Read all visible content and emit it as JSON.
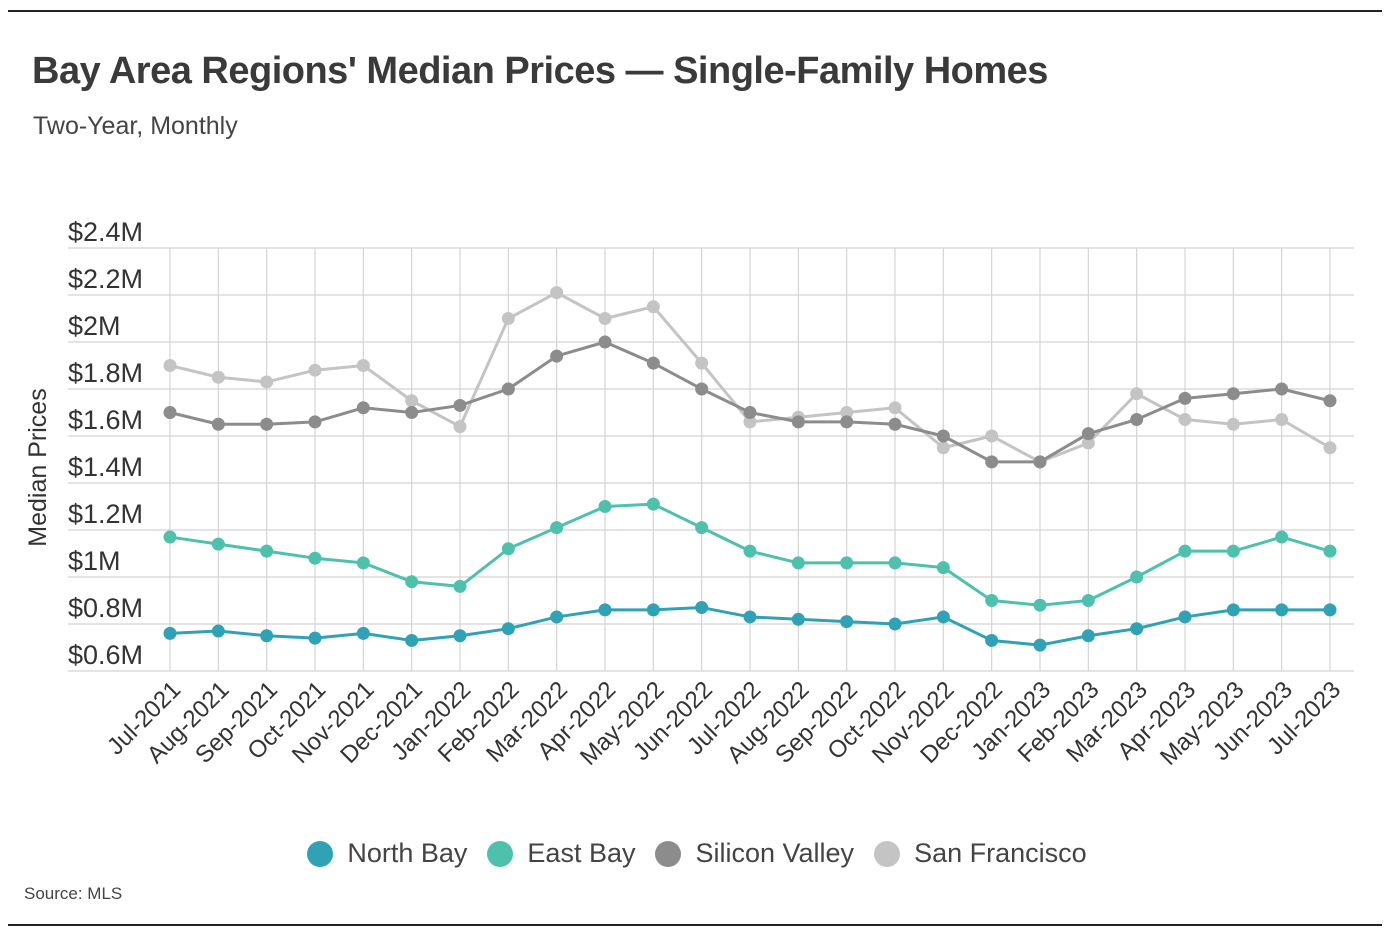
{
  "header": {
    "title": "Bay Area Regions' Median Prices — Single-Family Homes",
    "subtitle": "Two-Year, Monthly"
  },
  "footer": {
    "source": "Source:  MLS"
  },
  "chart_data": {
    "type": "line",
    "title": "Bay Area Regions' Median Prices — Single-Family Homes",
    "subtitle": "Two-Year, Monthly",
    "xlabel": "",
    "ylabel": "Median Prices",
    "ylim": [
      0.6,
      2.4
    ],
    "yticks": [
      0.6,
      0.8,
      1.0,
      1.2,
      1.4,
      1.6,
      1.8,
      2.0,
      2.2,
      2.4
    ],
    "ytick_labels": [
      "$0.6M",
      "$0.8M",
      "$1M",
      "$1.2M",
      "$1.4M",
      "$1.6M",
      "$1.8M",
      "$2M",
      "$2.2M",
      "$2.4M"
    ],
    "grid": true,
    "legend_position": "bottom-center",
    "categories": [
      "Jul-2021",
      "Aug-2021",
      "Sep-2021",
      "Oct-2021",
      "Nov-2021",
      "Dec-2021",
      "Jan-2022",
      "Feb-2022",
      "Mar-2022",
      "Apr-2022",
      "May-2022",
      "Jun-2022",
      "Jul-2022",
      "Aug-2022",
      "Sep-2022",
      "Oct-2022",
      "Nov-2022",
      "Dec-2022",
      "Jan-2023",
      "Feb-2023",
      "Mar-2023",
      "Apr-2023",
      "May-2023",
      "Jun-2023",
      "Jul-2023"
    ],
    "series": [
      {
        "name": "North Bay",
        "color": "#2fa3b5",
        "values": [
          0.76,
          0.77,
          0.75,
          0.74,
          0.76,
          0.73,
          0.75,
          0.78,
          0.83,
          0.86,
          0.86,
          0.87,
          0.83,
          0.82,
          0.81,
          0.8,
          0.83,
          0.73,
          0.71,
          0.75,
          0.78,
          0.83,
          0.86,
          0.86,
          0.86
        ]
      },
      {
        "name": "East Bay",
        "color": "#4dc1ac",
        "values": [
          1.17,
          1.14,
          1.11,
          1.08,
          1.06,
          0.98,
          0.96,
          1.12,
          1.21,
          1.3,
          1.31,
          1.21,
          1.11,
          1.06,
          1.06,
          1.06,
          1.04,
          0.9,
          0.88,
          0.9,
          1.0,
          1.11,
          1.11,
          1.17,
          1.11
        ]
      },
      {
        "name": "Silicon Valley",
        "color": "#8c8c8c",
        "values": [
          1.7,
          1.65,
          1.65,
          1.66,
          1.72,
          1.7,
          1.73,
          1.8,
          1.94,
          2.0,
          1.91,
          1.8,
          1.7,
          1.66,
          1.66,
          1.65,
          1.6,
          1.49,
          1.49,
          1.61,
          1.67,
          1.76,
          1.78,
          1.8,
          1.75
        ]
      },
      {
        "name": "San Francisco",
        "color": "#c4c4c4",
        "values": [
          1.9,
          1.85,
          1.83,
          1.88,
          1.9,
          1.75,
          1.64,
          2.1,
          2.21,
          2.1,
          2.15,
          1.91,
          1.66,
          1.68,
          1.7,
          1.72,
          1.55,
          1.6,
          1.49,
          1.57,
          1.78,
          1.67,
          1.65,
          1.67,
          1.55
        ]
      }
    ]
  }
}
